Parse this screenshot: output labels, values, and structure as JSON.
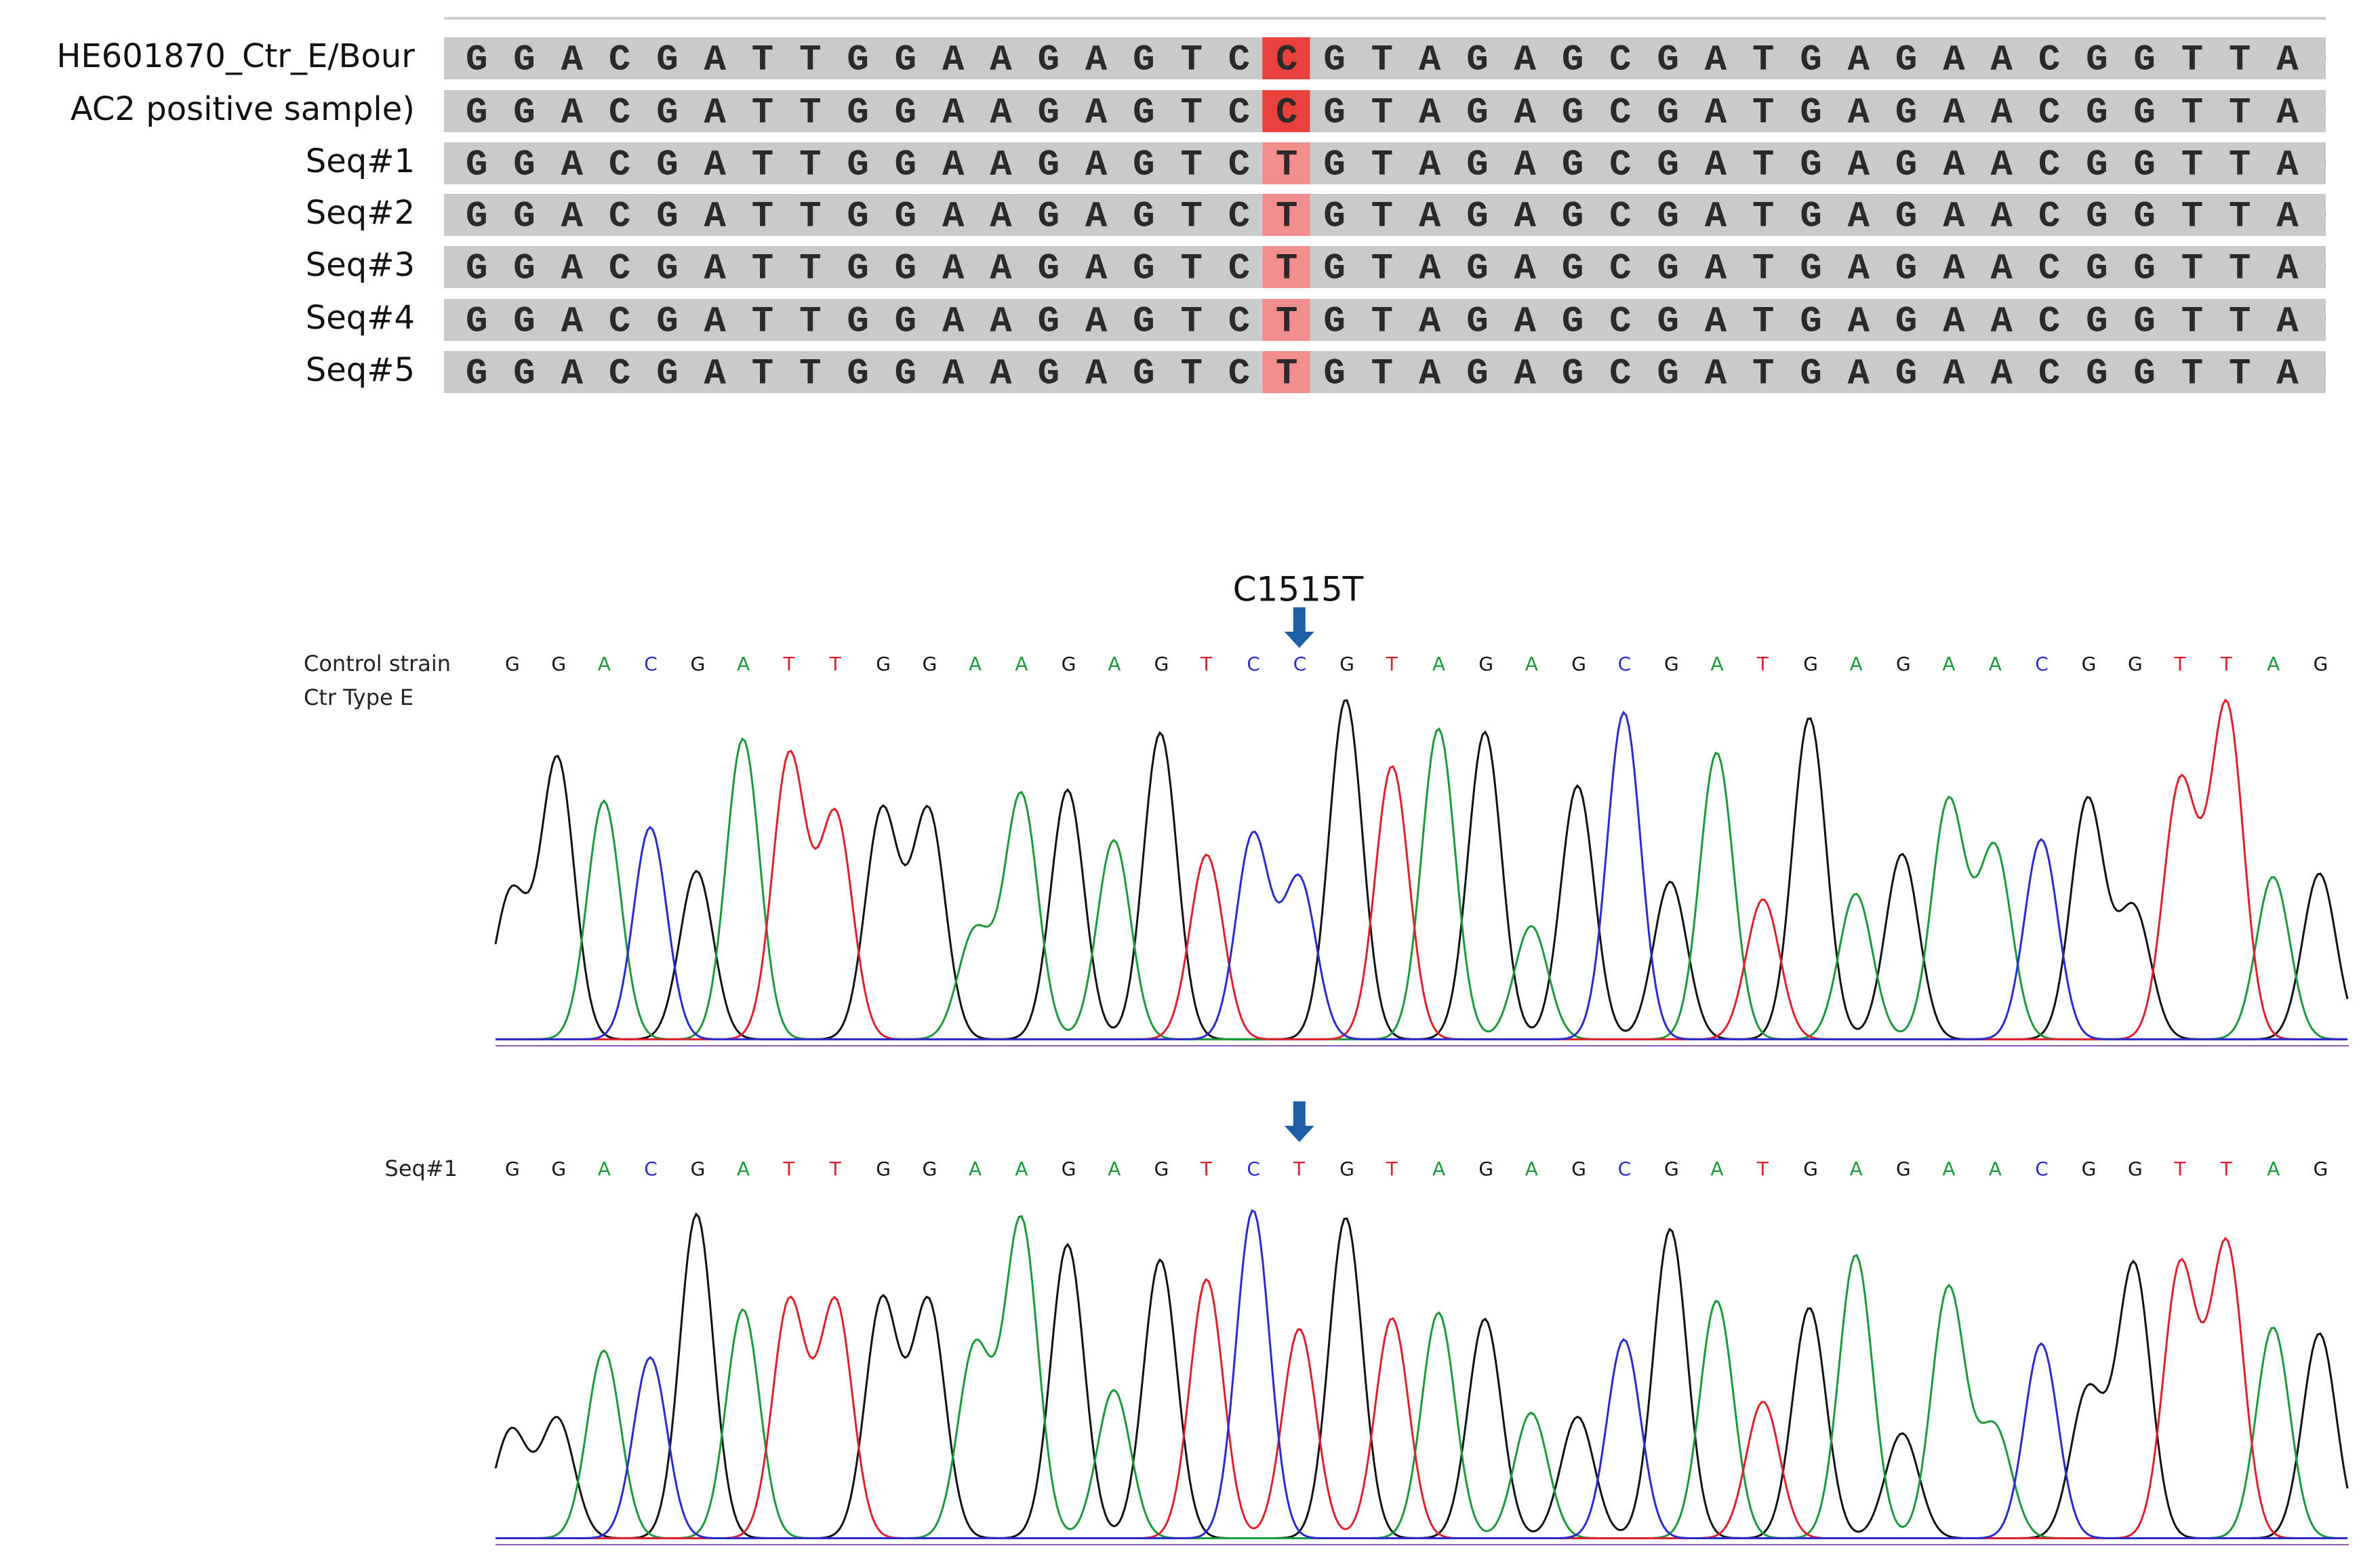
{
  "alignment": {
    "rows": [
      {
        "label": "HE601870_Ctr_E/Bour",
        "sequence": "GGACGATTGGAAGAGTCCGTAGAGCGATGAGAACGGTTAG"
      },
      {
        "label": "AC2 positive sample)",
        "sequence": "GGACGATTGGAAGAGTCCGTAGAGCGATGAGAACGGTTAG"
      },
      {
        "label": "Seq#1",
        "sequence": "GGACGATTGGAAGAGTCTGTAGAGCGATGAGAACGGTTAG"
      },
      {
        "label": "Seq#2",
        "sequence": "GGACGATTGGAAGAGTCTGTAGAGCGATGAGAACGGTTAG"
      },
      {
        "label": "Seq#3",
        "sequence": "GGACGATTGGAAGAGTCTGTAGAGCGATGAGAACGGTTAG"
      },
      {
        "label": "Seq#4",
        "sequence": "GGACGATTGGAAGAGTCTGTAGAGCGATGAGAACGGTTAG"
      },
      {
        "label": "Seq#5",
        "sequence": "GGACGATTGGAAGAGTCTGTAGAGCGATGAGAACGGTTAG"
      }
    ]
  },
  "chromatograms": {
    "annotation": "C1515T",
    "panels": [
      {
        "label": [
          "Control strain",
          "Ctr Type E"
        ],
        "bases": "GGACGATTGGAAGAGTCCGTAGAGCGATGAGAACGGTTAG"
      },
      {
        "label": [
          "Seq#1"
        ],
        "bases": "GGACGATTGGAAGAGTCTGTAGAGCGATGAGAACGGTTAG"
      }
    ]
  }
}
